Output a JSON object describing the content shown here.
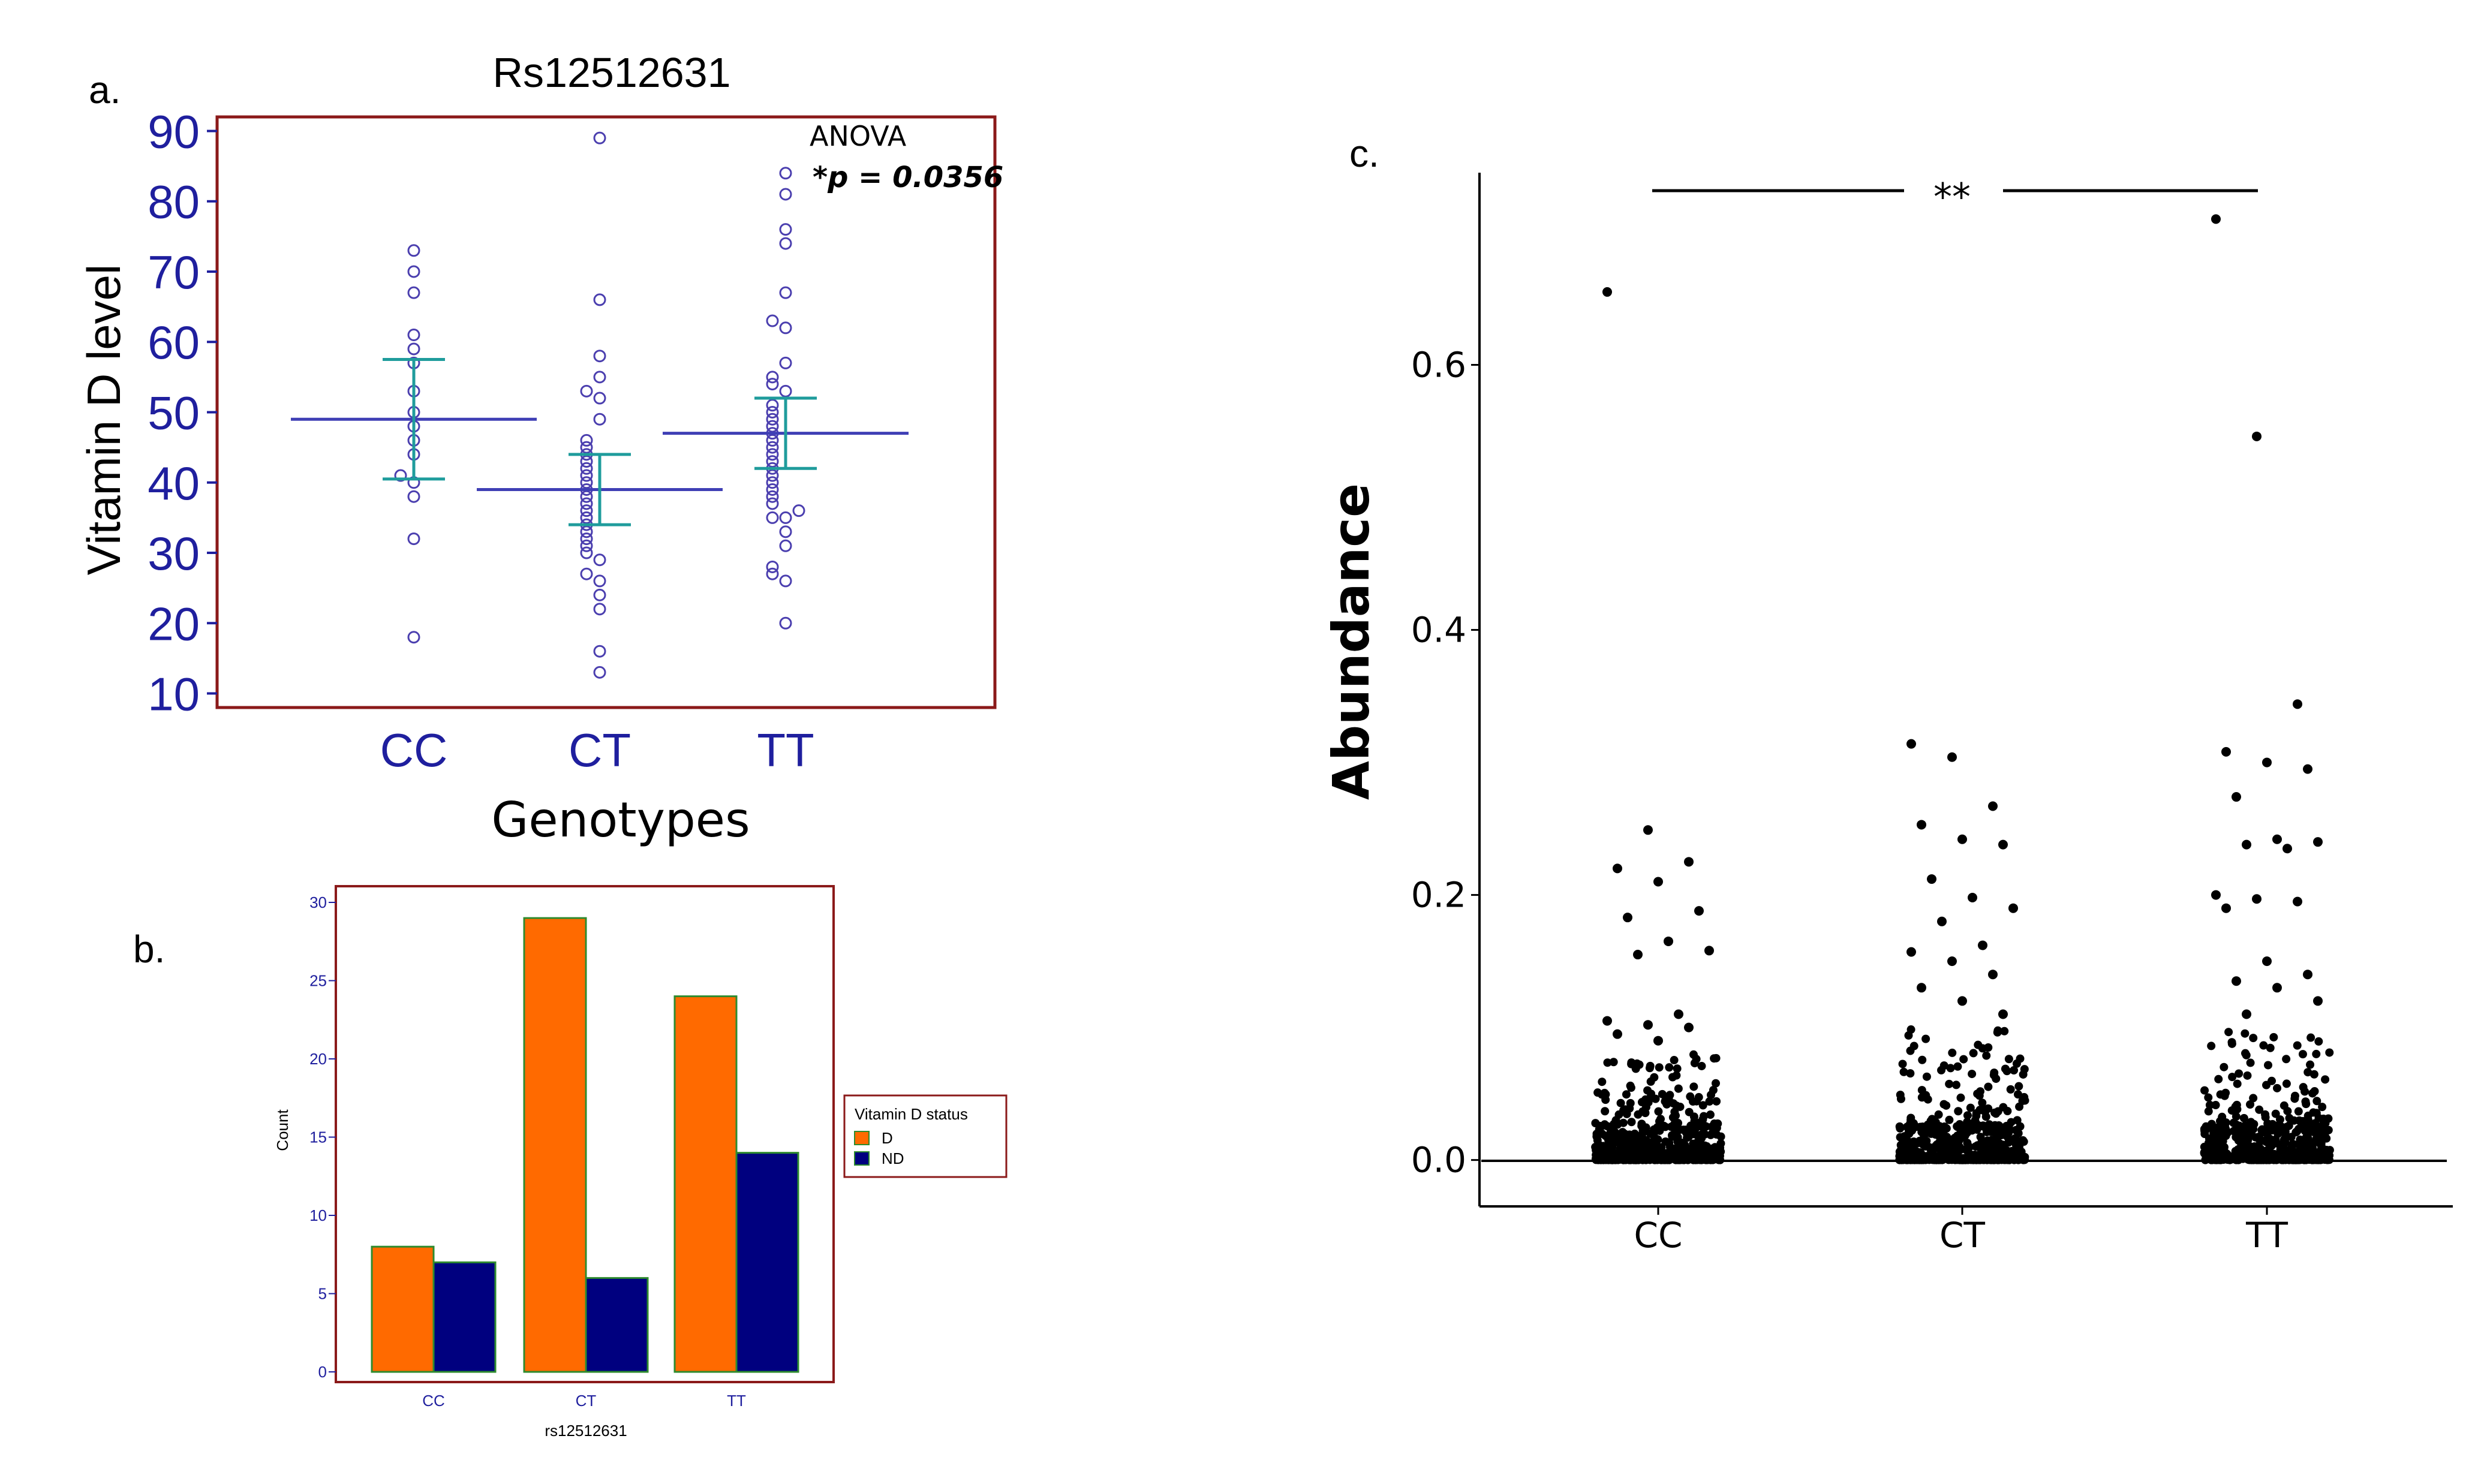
{
  "panel_labels": {
    "a": "a.",
    "b": "b.",
    "c": "c."
  },
  "colors": {
    "frame": "#8B1A1A",
    "axis_text_a": "#1F1F9E",
    "points_a": "#4B3FAF",
    "mean_line_a": "#3F3FB5",
    "ci_a": "#1F9C9C",
    "bar_D": "#FF6A00",
    "bar_ND": "#00007F",
    "bar_edge": "#2E8B2E",
    "points_c": "#000000"
  },
  "chart_data": [
    {
      "type": "scatter",
      "panel": "a",
      "title": "Rs12512631",
      "xlabel": "Genotypes",
      "ylabel": "Vitamin D level",
      "categories": [
        "CC",
        "CT",
        "TT"
      ],
      "ylim": [
        8,
        92
      ],
      "yticks": [
        10,
        20,
        30,
        40,
        50,
        60,
        70,
        80,
        90
      ],
      "annotation": {
        "line1": "ANOVA",
        "line2": "*p =  0.0356"
      },
      "groups": [
        {
          "name": "CC",
          "mean": 49,
          "ci": [
            40.5,
            57.5
          ],
          "values": [
            73,
            70,
            67,
            61,
            59,
            57,
            53,
            50,
            48,
            46,
            44,
            41,
            40,
            38,
            32,
            18
          ]
        },
        {
          "name": "CT",
          "mean": 39,
          "ci": [
            34,
            44
          ],
          "values": [
            89,
            66,
            58,
            55,
            53,
            52,
            49,
            46,
            45,
            44,
            43,
            42,
            41,
            40,
            39,
            38,
            37,
            36,
            35,
            34,
            33,
            32,
            31,
            30,
            29,
            27,
            26,
            24,
            22,
            16,
            13
          ]
        },
        {
          "name": "TT",
          "mean": 47,
          "ci": [
            42,
            52
          ],
          "values": [
            84,
            81,
            76,
            74,
            67,
            63,
            62,
            57,
            55,
            54,
            53,
            51,
            50,
            49,
            48,
            47,
            46,
            45,
            44,
            43,
            42,
            41,
            40,
            39,
            38,
            37,
            36,
            35,
            35,
            33,
            31,
            28,
            27,
            26,
            20
          ]
        }
      ]
    },
    {
      "type": "bar",
      "panel": "b",
      "xlabel": "rs12512631",
      "ylabel": "Count",
      "categories": [
        "CC",
        "CT",
        "TT"
      ],
      "ylim": [
        0,
        30
      ],
      "yticks": [
        0,
        5,
        10,
        15,
        20,
        25,
        30
      ],
      "legend": {
        "title": "Vitamin D status",
        "position": "right"
      },
      "series": [
        {
          "name": "D",
          "values": [
            8,
            29,
            24
          ]
        },
        {
          "name": "ND",
          "values": [
            7,
            6,
            14
          ]
        }
      ]
    },
    {
      "type": "scatter",
      "panel": "c",
      "ylabel": "Abundance",
      "categories": [
        "CC",
        "CT",
        "TT"
      ],
      "ylim": [
        -0.035,
        0.745
      ],
      "yticks": [
        "0.0",
        "0.2",
        "0.4",
        "0.6"
      ],
      "significance": {
        "label": "**",
        "from": "CC",
        "to": "TT"
      },
      "groups": [
        {
          "name": "CC",
          "notable_values": [
            0.655,
            0.249,
            0.225,
            0.22,
            0.21,
            0.188,
            0.183,
            0.165,
            0.158,
            0.155,
            0.11,
            0.105,
            0.102,
            0.1,
            0.095,
            0.09
          ],
          "dense_max": 0.08
        },
        {
          "name": "CT",
          "notable_values": [
            0.314,
            0.304,
            0.267,
            0.253,
            0.242,
            0.238,
            0.212,
            0.198,
            0.19,
            0.18,
            0.162,
            0.157,
            0.15,
            0.14,
            0.13,
            0.12,
            0.11
          ],
          "dense_max": 0.1
        },
        {
          "name": "TT",
          "notable_values": [
            0.71,
            0.546,
            0.344,
            0.308,
            0.3,
            0.295,
            0.274,
            0.242,
            0.24,
            0.238,
            0.235,
            0.2,
            0.197,
            0.195,
            0.19,
            0.15,
            0.14,
            0.135,
            0.13,
            0.12,
            0.11
          ],
          "dense_max": 0.1
        }
      ]
    }
  ]
}
